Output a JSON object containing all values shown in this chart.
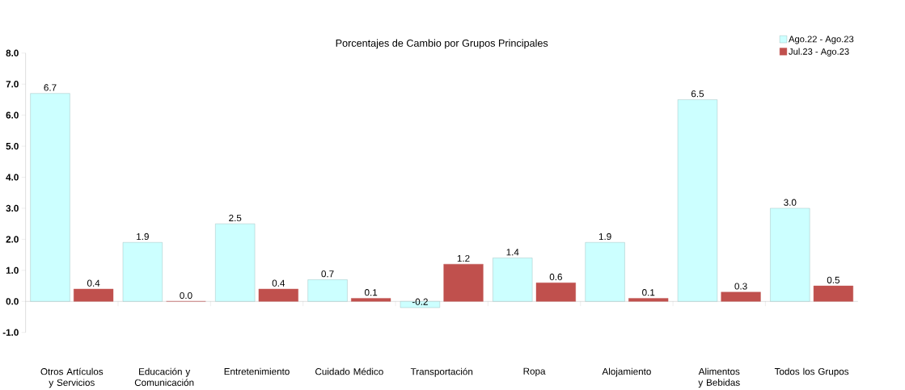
{
  "chart_data": {
    "type": "bar",
    "title": "Porcentajes de Cambio por Grupos Principales",
    "categories": [
      "Otros Artículos y Servicios",
      "Educación y Comunicación",
      "Entretenimiento",
      "Cuidado Médico",
      "Transportación",
      "Ropa",
      "Alojamiento",
      "Alimentos y Bebidas",
      "Todos los Grupos"
    ],
    "series": [
      {
        "name": "Ago.22 - Ago.23",
        "color": "#ccffff",
        "values": [
          6.7,
          1.9,
          2.5,
          0.7,
          -0.2,
          1.4,
          1.9,
          6.5,
          3.0
        ],
        "value_labels": [
          "6.7",
          "1.9",
          "2.5",
          "0.7",
          "-0.2",
          "1.4",
          "1.9",
          "6.5",
          "3.0"
        ]
      },
      {
        "name": "Jul.23 - Ago.23",
        "color": "#c0504d",
        "values": [
          0.4,
          0.0,
          0.4,
          0.1,
          1.2,
          0.6,
          0.1,
          0.3,
          0.5
        ],
        "value_labels": [
          "0.4",
          "0.0",
          "0.4",
          "0.1",
          "1.2",
          "0.6",
          "0.1",
          "0.3",
          "0.5"
        ]
      }
    ],
    "ylim": [
      -1,
      8
    ],
    "yticks": [
      {
        "value": -1,
        "label": "-1.0"
      },
      {
        "value": 0,
        "label": "0.0"
      },
      {
        "value": 1,
        "label": "1.0"
      },
      {
        "value": 2,
        "label": "2.0"
      },
      {
        "value": 3,
        "label": "3.0"
      },
      {
        "value": 4,
        "label": "4.0"
      },
      {
        "value": 5,
        "label": "5.0"
      },
      {
        "value": 6,
        "label": "6.0"
      },
      {
        "value": 7,
        "label": "7.0"
      },
      {
        "value": 8,
        "label": "8.0"
      }
    ],
    "legend": "top right"
  }
}
